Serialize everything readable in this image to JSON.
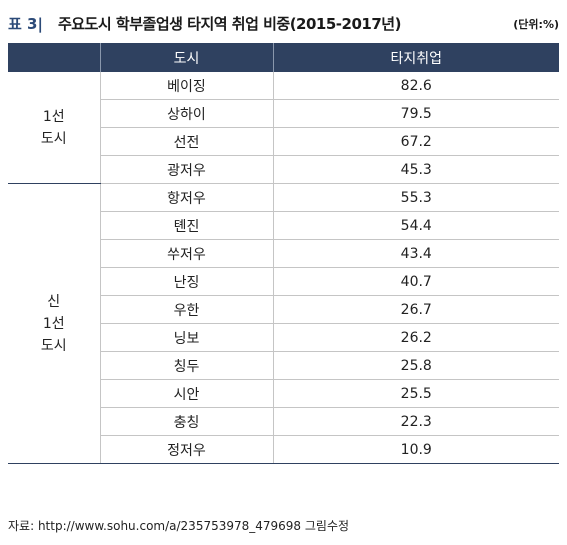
{
  "label": {
    "prefix": "표 3|",
    "title": "주요도시 학부졸업생 타지역 취업 비중(2015-2017년)",
    "unit": "(단위:%)"
  },
  "headers": {
    "group": "",
    "city": "도시",
    "value": "타지취업"
  },
  "groups": [
    {
      "name": "1선 도시",
      "lines": [
        "1선",
        "도시"
      ]
    },
    {
      "name": "신 1선 도시",
      "lines": [
        "신",
        "1선",
        "도시"
      ]
    }
  ],
  "chart_data": {
    "type": "table",
    "title": "주요도시 학부졸업생 타지역 취업 비중(2015-2017년)",
    "unit": "(단위:%)",
    "columns": [
      "",
      "도시",
      "타지취업"
    ],
    "rows": [
      {
        "group": "1선 도시",
        "city": "베이징",
        "value": 82.6
      },
      {
        "group": "1선 도시",
        "city": "상하이",
        "value": 79.5
      },
      {
        "group": "1선 도시",
        "city": "선전",
        "value": 67.2
      },
      {
        "group": "1선 도시",
        "city": "광저우",
        "value": 45.3
      },
      {
        "group": "신 1선 도시",
        "city": "항저우",
        "value": 55.3
      },
      {
        "group": "신 1선 도시",
        "city": "톈진",
        "value": 54.4
      },
      {
        "group": "신 1선 도시",
        "city": "쑤저우",
        "value": 43.4
      },
      {
        "group": "신 1선 도시",
        "city": "난징",
        "value": 40.7
      },
      {
        "group": "신 1선 도시",
        "city": "우한",
        "value": 26.7
      },
      {
        "group": "신 1선 도시",
        "city": "닝보",
        "value": 26.2
      },
      {
        "group": "신 1선 도시",
        "city": "칭두",
        "value": 25.8
      },
      {
        "group": "신 1선 도시",
        "city": "시안",
        "value": 25.5
      },
      {
        "group": "신 1선 도시",
        "city": "충칭",
        "value": 22.3
      },
      {
        "group": "신 1선 도시",
        "city": "정저우",
        "value": 10.9
      }
    ]
  },
  "source": "자료: http://www.sohu.com/a/235753978_479698 그림수정"
}
